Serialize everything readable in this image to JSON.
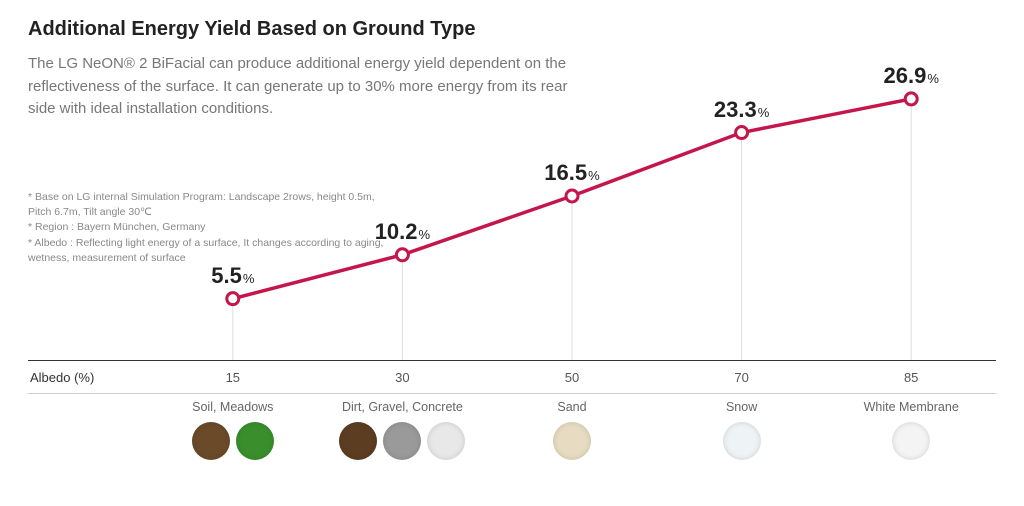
{
  "title": "Additional Energy Yield Based on Ground Type",
  "description": "The LG NeON® 2 BiFacial can produce additional energy yield dependent on the reflectiveness of the surface.  It can generate up to 30% more energy from its rear side with ideal installation conditions.",
  "footnotes": [
    "* Base on LG internal Simulation Program: Landscape 2rows, height 0.5m, Pitch 6.7m, Tilt angle 30℃",
    "* Region : Bayern München, Germany",
    "* Albedo : Reflecting light energy of a surface, It changes according to aging, wetness, measurement of surface"
  ],
  "chart": {
    "type": "line",
    "x_header": "Albedo (%)",
    "line_color": "#c4164a",
    "line_width": 3.5,
    "marker_style": "circle",
    "marker_radius": 6,
    "marker_fill": "#ffffff",
    "marker_stroke": "#c4164a",
    "marker_stroke_width": 3,
    "gridline_color": "#dddddd",
    "background_color": "#ffffff",
    "value_font_size_main": 22,
    "value_font_size_suffix": 13,
    "ylim": [
      0,
      30
    ],
    "points": [
      {
        "albedo": 15,
        "yield": 5.5,
        "label": "5.5",
        "category": "Soil, Meadows",
        "swatches": [
          "#6b4a2a",
          "#3a8f2c"
        ]
      },
      {
        "albedo": 30,
        "yield": 10.2,
        "label": "10.2",
        "category": "Dirt, Gravel, Concrete",
        "swatches": [
          "#5c3d22",
          "#9a9a9a",
          "#e8e8e8"
        ]
      },
      {
        "albedo": 50,
        "yield": 16.5,
        "label": "16.5",
        "category": "Sand",
        "swatches": [
          "#e7dcc2"
        ]
      },
      {
        "albedo": 70,
        "yield": 23.3,
        "label": "23.3",
        "category": "Snow",
        "swatches": [
          "#eef3f6"
        ]
      },
      {
        "albedo": 85,
        "yield": 26.9,
        "label": "26.9",
        "category": "White Membrane",
        "swatches": [
          "#f4f4f4"
        ]
      }
    ]
  }
}
